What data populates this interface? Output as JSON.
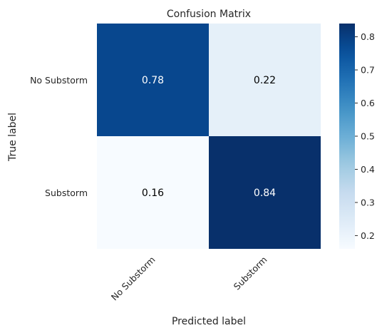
{
  "chart_data": {
    "type": "heatmap",
    "title": "Confusion Matrix",
    "xlabel": "Predicted label",
    "ylabel": "True label",
    "x_categories": [
      "No Substorm",
      "Substorm"
    ],
    "y_categories": [
      "No Substorm",
      "Substorm"
    ],
    "values": [
      [
        0.78,
        0.22
      ],
      [
        0.16,
        0.84
      ]
    ],
    "value_labels": [
      [
        "0.78",
        "0.22"
      ],
      [
        "0.16",
        "0.84"
      ]
    ],
    "colormap": "Blues",
    "colorbar": {
      "range": [
        0.16,
        0.84
      ],
      "ticks": [
        0.2,
        0.3,
        0.4,
        0.5,
        0.6,
        0.7,
        0.8
      ],
      "tick_labels": [
        "0.2",
        "0.3",
        "0.4",
        "0.5",
        "0.6",
        "0.7",
        "0.8"
      ]
    },
    "grid": false
  }
}
